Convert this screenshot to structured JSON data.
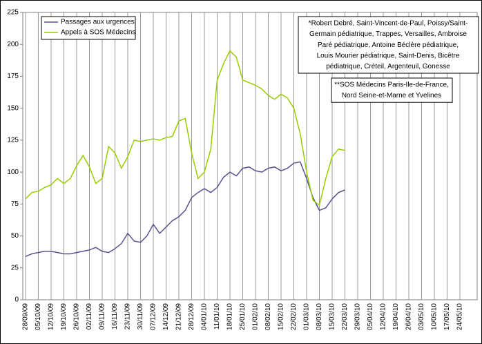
{
  "chart_data": {
    "type": "line",
    "categories": [
      "28/09/09",
      null,
      "05/10/09",
      null,
      "12/10/09",
      null,
      "19/10/09",
      null,
      "26/10/09",
      null,
      "02/11/09",
      null,
      "09/11/09",
      null,
      "16/11/09",
      null,
      "23/11/09",
      null,
      "30/11/09",
      null,
      "07/12/09",
      null,
      "14/12/09",
      null,
      "21/12/09",
      null,
      "28/12/09",
      null,
      "04/01/10",
      null,
      "11/01/10",
      null,
      "18/01/10",
      null,
      "25/01/10",
      null,
      "01/02/10",
      null,
      "08/02/10",
      null,
      "15/02/10",
      null,
      "22/02/10",
      null,
      "01/03/10",
      null,
      "08/03/10",
      null,
      "15/03/10",
      null,
      "22/03/10",
      null,
      "29/03/10",
      null,
      "05/04/10",
      null,
      "12/04/10",
      null,
      "19/04/10",
      null,
      "26/04/10",
      null,
      "03/05/10",
      null,
      "10/05/10",
      null,
      "17/05/10",
      null,
      "24/05/10"
    ],
    "series": [
      {
        "name": "Passages aux urgences",
        "color": "#55518f",
        "values": [
          34,
          36,
          37,
          38,
          38,
          37,
          36,
          36,
          37,
          38,
          39,
          41,
          38,
          37,
          40,
          44,
          52,
          46,
          45,
          50,
          59,
          52,
          57,
          62,
          65,
          70,
          80,
          84,
          87,
          84,
          88,
          96,
          100,
          97,
          103,
          104,
          101,
          100,
          103,
          104,
          101,
          103,
          107,
          108,
          95,
          80,
          70,
          72,
          79,
          84,
          86,
          null,
          null,
          null,
          null,
          null,
          null,
          null,
          null,
          null,
          null,
          null,
          null,
          null,
          null,
          null,
          null,
          null,
          null
        ]
      },
      {
        "name": "Appels à SOS Médecins",
        "color": "#99cc00",
        "values": [
          79,
          84,
          85,
          88,
          90,
          95,
          91,
          95,
          105,
          113,
          104,
          91,
          95,
          120,
          115,
          103,
          112,
          125,
          124,
          125,
          126,
          125,
          127,
          128,
          140,
          142,
          115,
          95,
          100,
          118,
          172,
          185,
          195,
          190,
          172,
          170,
          168,
          165,
          160,
          157,
          161,
          158,
          150,
          130,
          100,
          78,
          74,
          95,
          112,
          118,
          117,
          null,
          null,
          null,
          null,
          null,
          null,
          null,
          null,
          null,
          null,
          null,
          null,
          null,
          null,
          null,
          null,
          null,
          null
        ]
      }
    ],
    "ylim": [
      0,
      225
    ],
    "yticks": [
      0,
      25,
      50,
      75,
      100,
      125,
      150,
      175,
      200,
      225
    ],
    "annotations": [
      [
        "*Robert Debré, Saint-Vincent-de-Paul, Poissy/Saint-",
        "Germain pédiatrique, Trappes, Versailles, Ambroise",
        "Paré pédiatrique, Antoine Béclère pédiatrique,",
        "Louis Mourier pédiatrique, Saint-Denis, Bicêtre",
        "pédiatrique, Créteil, Argenteuil, Gonesse"
      ],
      [
        "**SOS Médecins Paris-Ile-de-France,",
        "Nord Seine-et-Marne et Yvelines"
      ]
    ],
    "vertical_grid": true,
    "legend": "top-left"
  }
}
